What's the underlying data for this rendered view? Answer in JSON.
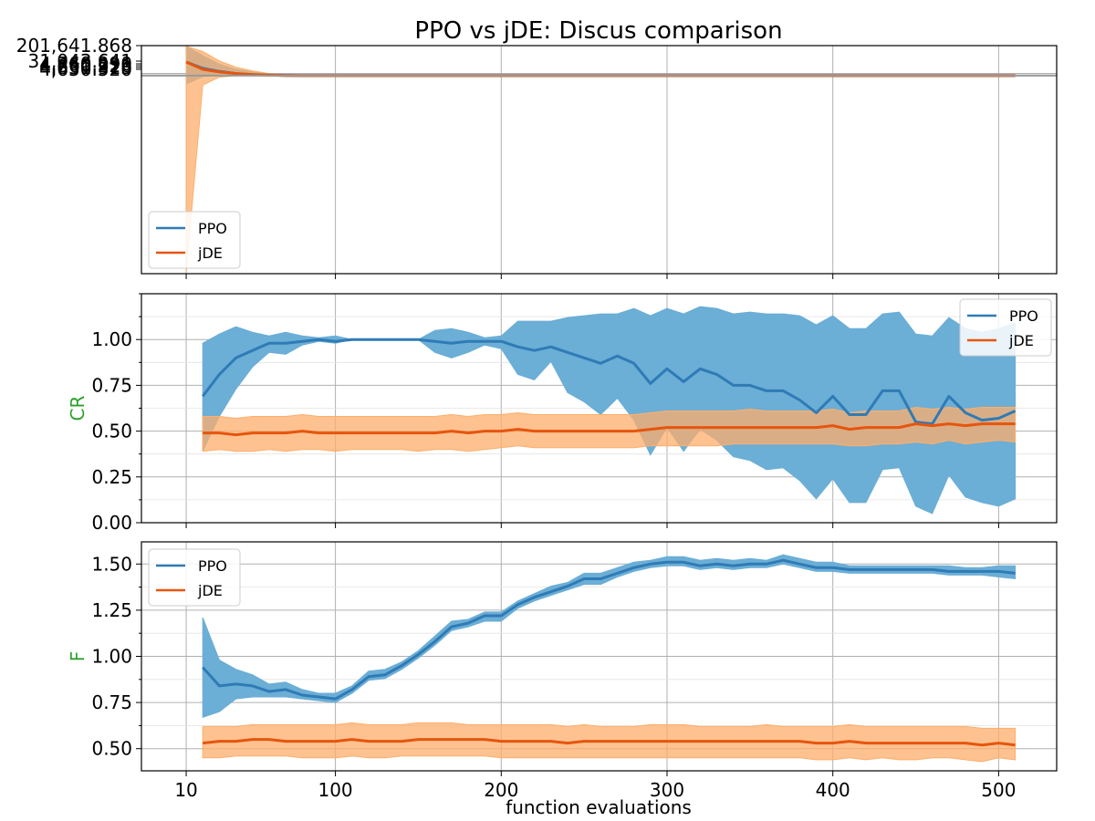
{
  "figure": {
    "title": "PPO vs jDE: Discus comparison",
    "xlabel": "function evaluations",
    "colors": {
      "ppo": "#2f7bb6",
      "ppo_band": "#6baed6",
      "jde": "#e6550d",
      "jde_band": "#fdae6b",
      "ylabel_color": "#2ca02c",
      "grid": "#b0b0b0"
    }
  },
  "chart_data": [
    {
      "type": "line",
      "panel": "fitness",
      "title": "PPO vs jDE: Discus comparison",
      "xlabel": "",
      "ylabel": "",
      "xlim": [
        -17,
        535
      ],
      "xticks": [
        10,
        100,
        200,
        300,
        400,
        500
      ],
      "ytick_labels": [
        "201,641.868",
        "31,043.641",
        "4,760.290",
        "4,660.226",
        "4,651.913",
        "4,650.520"
      ],
      "ylim": [
        -16000,
        201641.868
      ],
      "legend": {
        "position": "lower-left",
        "entries": [
          "PPO",
          "jDE"
        ]
      },
      "grid": true,
      "x": [
        10,
        20,
        30,
        40,
        50,
        60,
        70,
        80,
        90,
        100,
        150,
        200,
        250,
        300,
        350,
        400,
        450,
        500,
        510
      ],
      "series": [
        {
          "name": "PPO",
          "values": [
            186000,
            180000,
            177000,
            175000,
            174000,
            173500,
            173200,
            173000,
            173000,
            173000,
            173000,
            173000,
            173000,
            173000,
            173000,
            173000,
            173000,
            173000,
            173000
          ],
          "lower": [
            165000,
            172000,
            174500,
            174000,
            173600,
            173300,
            173100,
            173000,
            173000,
            173000,
            173000,
            173000,
            173000,
            173000,
            173000,
            173000,
            173000,
            173000,
            173000
          ],
          "upper": [
            201000,
            192000,
            184000,
            179000,
            176500,
            174500,
            173600,
            173200,
            173000,
            173000,
            173000,
            173000,
            173000,
            173000,
            173000,
            173000,
            173000,
            173000,
            173000
          ]
        },
        {
          "name": "jDE",
          "values": [
            186000,
            179000,
            176500,
            175000,
            174000,
            173400,
            173200,
            173000,
            173000,
            173000,
            173000,
            173000,
            173000,
            173000,
            173000,
            173000,
            173000,
            173000,
            173000
          ],
          "lower": [
            -14000,
            164000,
            171500,
            173000,
            173300,
            173100,
            173000,
            173000,
            173000,
            173000,
            173000,
            173000,
            173000,
            173000,
            173000,
            173000,
            173000,
            173000,
            173000
          ],
          "upper": [
            201000,
            196000,
            187000,
            181000,
            177500,
            175000,
            173800,
            173300,
            173100,
            173000,
            173000,
            173000,
            173000,
            173000,
            173000,
            173000,
            173000,
            173000,
            173000
          ]
        }
      ],
      "hlines": [
        173000,
        175000
      ]
    },
    {
      "type": "line",
      "panel": "cr",
      "title": "",
      "xlabel": "",
      "ylabel": "CR",
      "xlim": [
        -17,
        535
      ],
      "ylim": [
        0.0,
        1.25
      ],
      "yticks": [
        "0.00",
        "0.25",
        "0.50",
        "0.75",
        "1.00"
      ],
      "legend": {
        "position": "top-right",
        "entries": [
          "PPO",
          "jDE"
        ]
      },
      "grid": true,
      "x": [
        20,
        30,
        40,
        50,
        60,
        70,
        80,
        90,
        100,
        110,
        120,
        130,
        140,
        150,
        160,
        170,
        180,
        190,
        200,
        210,
        220,
        230,
        240,
        250,
        260,
        270,
        280,
        290,
        300,
        310,
        320,
        330,
        340,
        350,
        360,
        370,
        380,
        390,
        400,
        410,
        420,
        430,
        440,
        450,
        460,
        470,
        480,
        490,
        500,
        510
      ],
      "series": [
        {
          "name": "PPO",
          "values": [
            0.69,
            0.81,
            0.9,
            0.94,
            0.98,
            0.98,
            0.99,
            1.0,
            0.99,
            1.0,
            1.0,
            1.0,
            1.0,
            1.0,
            0.99,
            0.98,
            0.99,
            0.99,
            0.99,
            0.96,
            0.94,
            0.96,
            0.93,
            0.9,
            0.87,
            0.91,
            0.87,
            0.76,
            0.84,
            0.77,
            0.84,
            0.81,
            0.75,
            0.75,
            0.72,
            0.72,
            0.67,
            0.6,
            0.69,
            0.59,
            0.59,
            0.72,
            0.72,
            0.55,
            0.54,
            0.69,
            0.6,
            0.56,
            0.57,
            0.61
          ],
          "lower": [
            0.39,
            0.58,
            0.73,
            0.85,
            0.93,
            0.92,
            0.97,
            0.99,
            0.98,
            1.0,
            1.0,
            1.0,
            1.0,
            1.0,
            0.93,
            0.9,
            0.93,
            0.97,
            0.95,
            0.81,
            0.78,
            0.88,
            0.71,
            0.66,
            0.59,
            0.68,
            0.56,
            0.37,
            0.52,
            0.39,
            0.51,
            0.45,
            0.36,
            0.34,
            0.29,
            0.3,
            0.23,
            0.13,
            0.24,
            0.11,
            0.11,
            0.29,
            0.3,
            0.09,
            0.05,
            0.26,
            0.14,
            0.11,
            0.09,
            0.13
          ],
          "upper": [
            0.98,
            1.03,
            1.07,
            1.04,
            1.02,
            1.04,
            1.02,
            1.01,
            1.02,
            1.0,
            1.0,
            1.0,
            1.0,
            1.0,
            1.05,
            1.06,
            1.04,
            1.01,
            1.02,
            1.1,
            1.1,
            1.1,
            1.12,
            1.13,
            1.14,
            1.14,
            1.17,
            1.13,
            1.17,
            1.14,
            1.18,
            1.17,
            1.14,
            1.15,
            1.14,
            1.14,
            1.13,
            1.08,
            1.13,
            1.06,
            1.06,
            1.14,
            1.15,
            1.03,
            1.02,
            1.12,
            1.06,
            1.04,
            1.06,
            1.09
          ]
        },
        {
          "name": "jDE",
          "values": [
            0.49,
            0.49,
            0.48,
            0.49,
            0.49,
            0.49,
            0.5,
            0.49,
            0.49,
            0.49,
            0.49,
            0.49,
            0.49,
            0.49,
            0.49,
            0.5,
            0.49,
            0.5,
            0.5,
            0.51,
            0.5,
            0.5,
            0.5,
            0.5,
            0.5,
            0.5,
            0.5,
            0.51,
            0.52,
            0.52,
            0.52,
            0.52,
            0.52,
            0.52,
            0.52,
            0.52,
            0.52,
            0.52,
            0.53,
            0.51,
            0.52,
            0.52,
            0.52,
            0.54,
            0.53,
            0.54,
            0.53,
            0.54,
            0.54,
            0.54
          ],
          "lower": [
            0.39,
            0.4,
            0.39,
            0.39,
            0.4,
            0.39,
            0.4,
            0.4,
            0.39,
            0.4,
            0.4,
            0.4,
            0.4,
            0.39,
            0.4,
            0.4,
            0.39,
            0.4,
            0.41,
            0.42,
            0.41,
            0.41,
            0.41,
            0.41,
            0.41,
            0.41,
            0.41,
            0.42,
            0.42,
            0.42,
            0.42,
            0.42,
            0.43,
            0.43,
            0.43,
            0.43,
            0.43,
            0.43,
            0.43,
            0.42,
            0.42,
            0.43,
            0.43,
            0.44,
            0.43,
            0.45,
            0.43,
            0.44,
            0.45,
            0.44
          ],
          "upper": [
            0.58,
            0.58,
            0.57,
            0.58,
            0.58,
            0.58,
            0.59,
            0.58,
            0.58,
            0.58,
            0.58,
            0.58,
            0.58,
            0.58,
            0.58,
            0.59,
            0.58,
            0.59,
            0.59,
            0.6,
            0.59,
            0.59,
            0.59,
            0.59,
            0.59,
            0.59,
            0.59,
            0.6,
            0.61,
            0.61,
            0.61,
            0.61,
            0.61,
            0.62,
            0.61,
            0.61,
            0.61,
            0.61,
            0.62,
            0.6,
            0.61,
            0.61,
            0.61,
            0.63,
            0.62,
            0.63,
            0.62,
            0.63,
            0.63,
            0.63
          ]
        }
      ]
    },
    {
      "type": "line",
      "panel": "f",
      "title": "",
      "xlabel": "function evaluations",
      "ylabel": "F",
      "xlim": [
        -17,
        535
      ],
      "ylim": [
        0.38,
        1.62
      ],
      "yticks": [
        "0.50",
        "0.75",
        "1.00",
        "1.25",
        "1.50"
      ],
      "xtick_labels": [
        "10",
        "100",
        "200",
        "300",
        "400",
        "500"
      ],
      "legend": {
        "position": "top-left",
        "entries": [
          "PPO",
          "jDE"
        ]
      },
      "grid": true,
      "x": [
        20,
        30,
        40,
        50,
        60,
        70,
        80,
        90,
        100,
        110,
        120,
        130,
        140,
        150,
        160,
        170,
        180,
        190,
        200,
        210,
        220,
        230,
        240,
        250,
        260,
        270,
        280,
        290,
        300,
        310,
        320,
        330,
        340,
        350,
        360,
        370,
        380,
        390,
        400,
        410,
        420,
        430,
        440,
        450,
        460,
        470,
        480,
        490,
        500,
        510
      ],
      "series": [
        {
          "name": "PPO",
          "values": [
            0.94,
            0.84,
            0.85,
            0.84,
            0.81,
            0.82,
            0.79,
            0.78,
            0.77,
            0.82,
            0.89,
            0.9,
            0.95,
            1.01,
            1.08,
            1.16,
            1.18,
            1.22,
            1.22,
            1.28,
            1.32,
            1.35,
            1.38,
            1.42,
            1.42,
            1.45,
            1.48,
            1.5,
            1.51,
            1.51,
            1.49,
            1.5,
            1.49,
            1.5,
            1.5,
            1.52,
            1.5,
            1.48,
            1.48,
            1.47,
            1.47,
            1.47,
            1.47,
            1.47,
            1.47,
            1.46,
            1.46,
            1.46,
            1.46,
            1.45
          ],
          "lower": [
            0.67,
            0.7,
            0.77,
            0.78,
            0.78,
            0.78,
            0.77,
            0.76,
            0.75,
            0.8,
            0.87,
            0.88,
            0.93,
            0.99,
            1.06,
            1.14,
            1.16,
            1.19,
            1.19,
            1.26,
            1.3,
            1.33,
            1.36,
            1.39,
            1.39,
            1.43,
            1.46,
            1.48,
            1.49,
            1.49,
            1.47,
            1.48,
            1.47,
            1.48,
            1.48,
            1.5,
            1.48,
            1.46,
            1.46,
            1.45,
            1.45,
            1.45,
            1.45,
            1.45,
            1.45,
            1.44,
            1.44,
            1.44,
            1.43,
            1.42
          ],
          "upper": [
            1.21,
            0.98,
            0.93,
            0.9,
            0.85,
            0.86,
            0.82,
            0.8,
            0.8,
            0.84,
            0.92,
            0.93,
            0.97,
            1.03,
            1.11,
            1.19,
            1.2,
            1.24,
            1.24,
            1.3,
            1.34,
            1.38,
            1.4,
            1.45,
            1.45,
            1.48,
            1.51,
            1.52,
            1.54,
            1.54,
            1.52,
            1.53,
            1.52,
            1.53,
            1.52,
            1.55,
            1.53,
            1.51,
            1.51,
            1.49,
            1.49,
            1.49,
            1.49,
            1.49,
            1.49,
            1.49,
            1.48,
            1.48,
            1.49,
            1.49
          ]
        },
        {
          "name": "jDE",
          "values": [
            0.53,
            0.54,
            0.54,
            0.55,
            0.55,
            0.54,
            0.54,
            0.54,
            0.54,
            0.55,
            0.54,
            0.54,
            0.54,
            0.55,
            0.55,
            0.55,
            0.55,
            0.55,
            0.54,
            0.54,
            0.54,
            0.54,
            0.53,
            0.54,
            0.54,
            0.54,
            0.54,
            0.54,
            0.54,
            0.54,
            0.54,
            0.54,
            0.54,
            0.54,
            0.54,
            0.54,
            0.54,
            0.53,
            0.53,
            0.54,
            0.53,
            0.53,
            0.53,
            0.53,
            0.53,
            0.53,
            0.53,
            0.52,
            0.53,
            0.52
          ],
          "lower": [
            0.45,
            0.45,
            0.46,
            0.46,
            0.46,
            0.46,
            0.45,
            0.45,
            0.45,
            0.46,
            0.45,
            0.45,
            0.46,
            0.46,
            0.46,
            0.46,
            0.46,
            0.46,
            0.45,
            0.45,
            0.45,
            0.45,
            0.45,
            0.45,
            0.45,
            0.45,
            0.45,
            0.45,
            0.45,
            0.45,
            0.45,
            0.45,
            0.45,
            0.45,
            0.45,
            0.45,
            0.45,
            0.44,
            0.44,
            0.45,
            0.44,
            0.45,
            0.44,
            0.44,
            0.45,
            0.45,
            0.44,
            0.43,
            0.45,
            0.44
          ],
          "upper": [
            0.62,
            0.62,
            0.62,
            0.63,
            0.63,
            0.63,
            0.63,
            0.63,
            0.63,
            0.64,
            0.63,
            0.63,
            0.63,
            0.64,
            0.64,
            0.64,
            0.63,
            0.63,
            0.63,
            0.63,
            0.63,
            0.63,
            0.62,
            0.63,
            0.62,
            0.62,
            0.62,
            0.63,
            0.63,
            0.63,
            0.62,
            0.62,
            0.62,
            0.62,
            0.63,
            0.62,
            0.62,
            0.62,
            0.62,
            0.63,
            0.62,
            0.62,
            0.62,
            0.62,
            0.62,
            0.62,
            0.62,
            0.61,
            0.61,
            0.61
          ]
        }
      ]
    }
  ]
}
